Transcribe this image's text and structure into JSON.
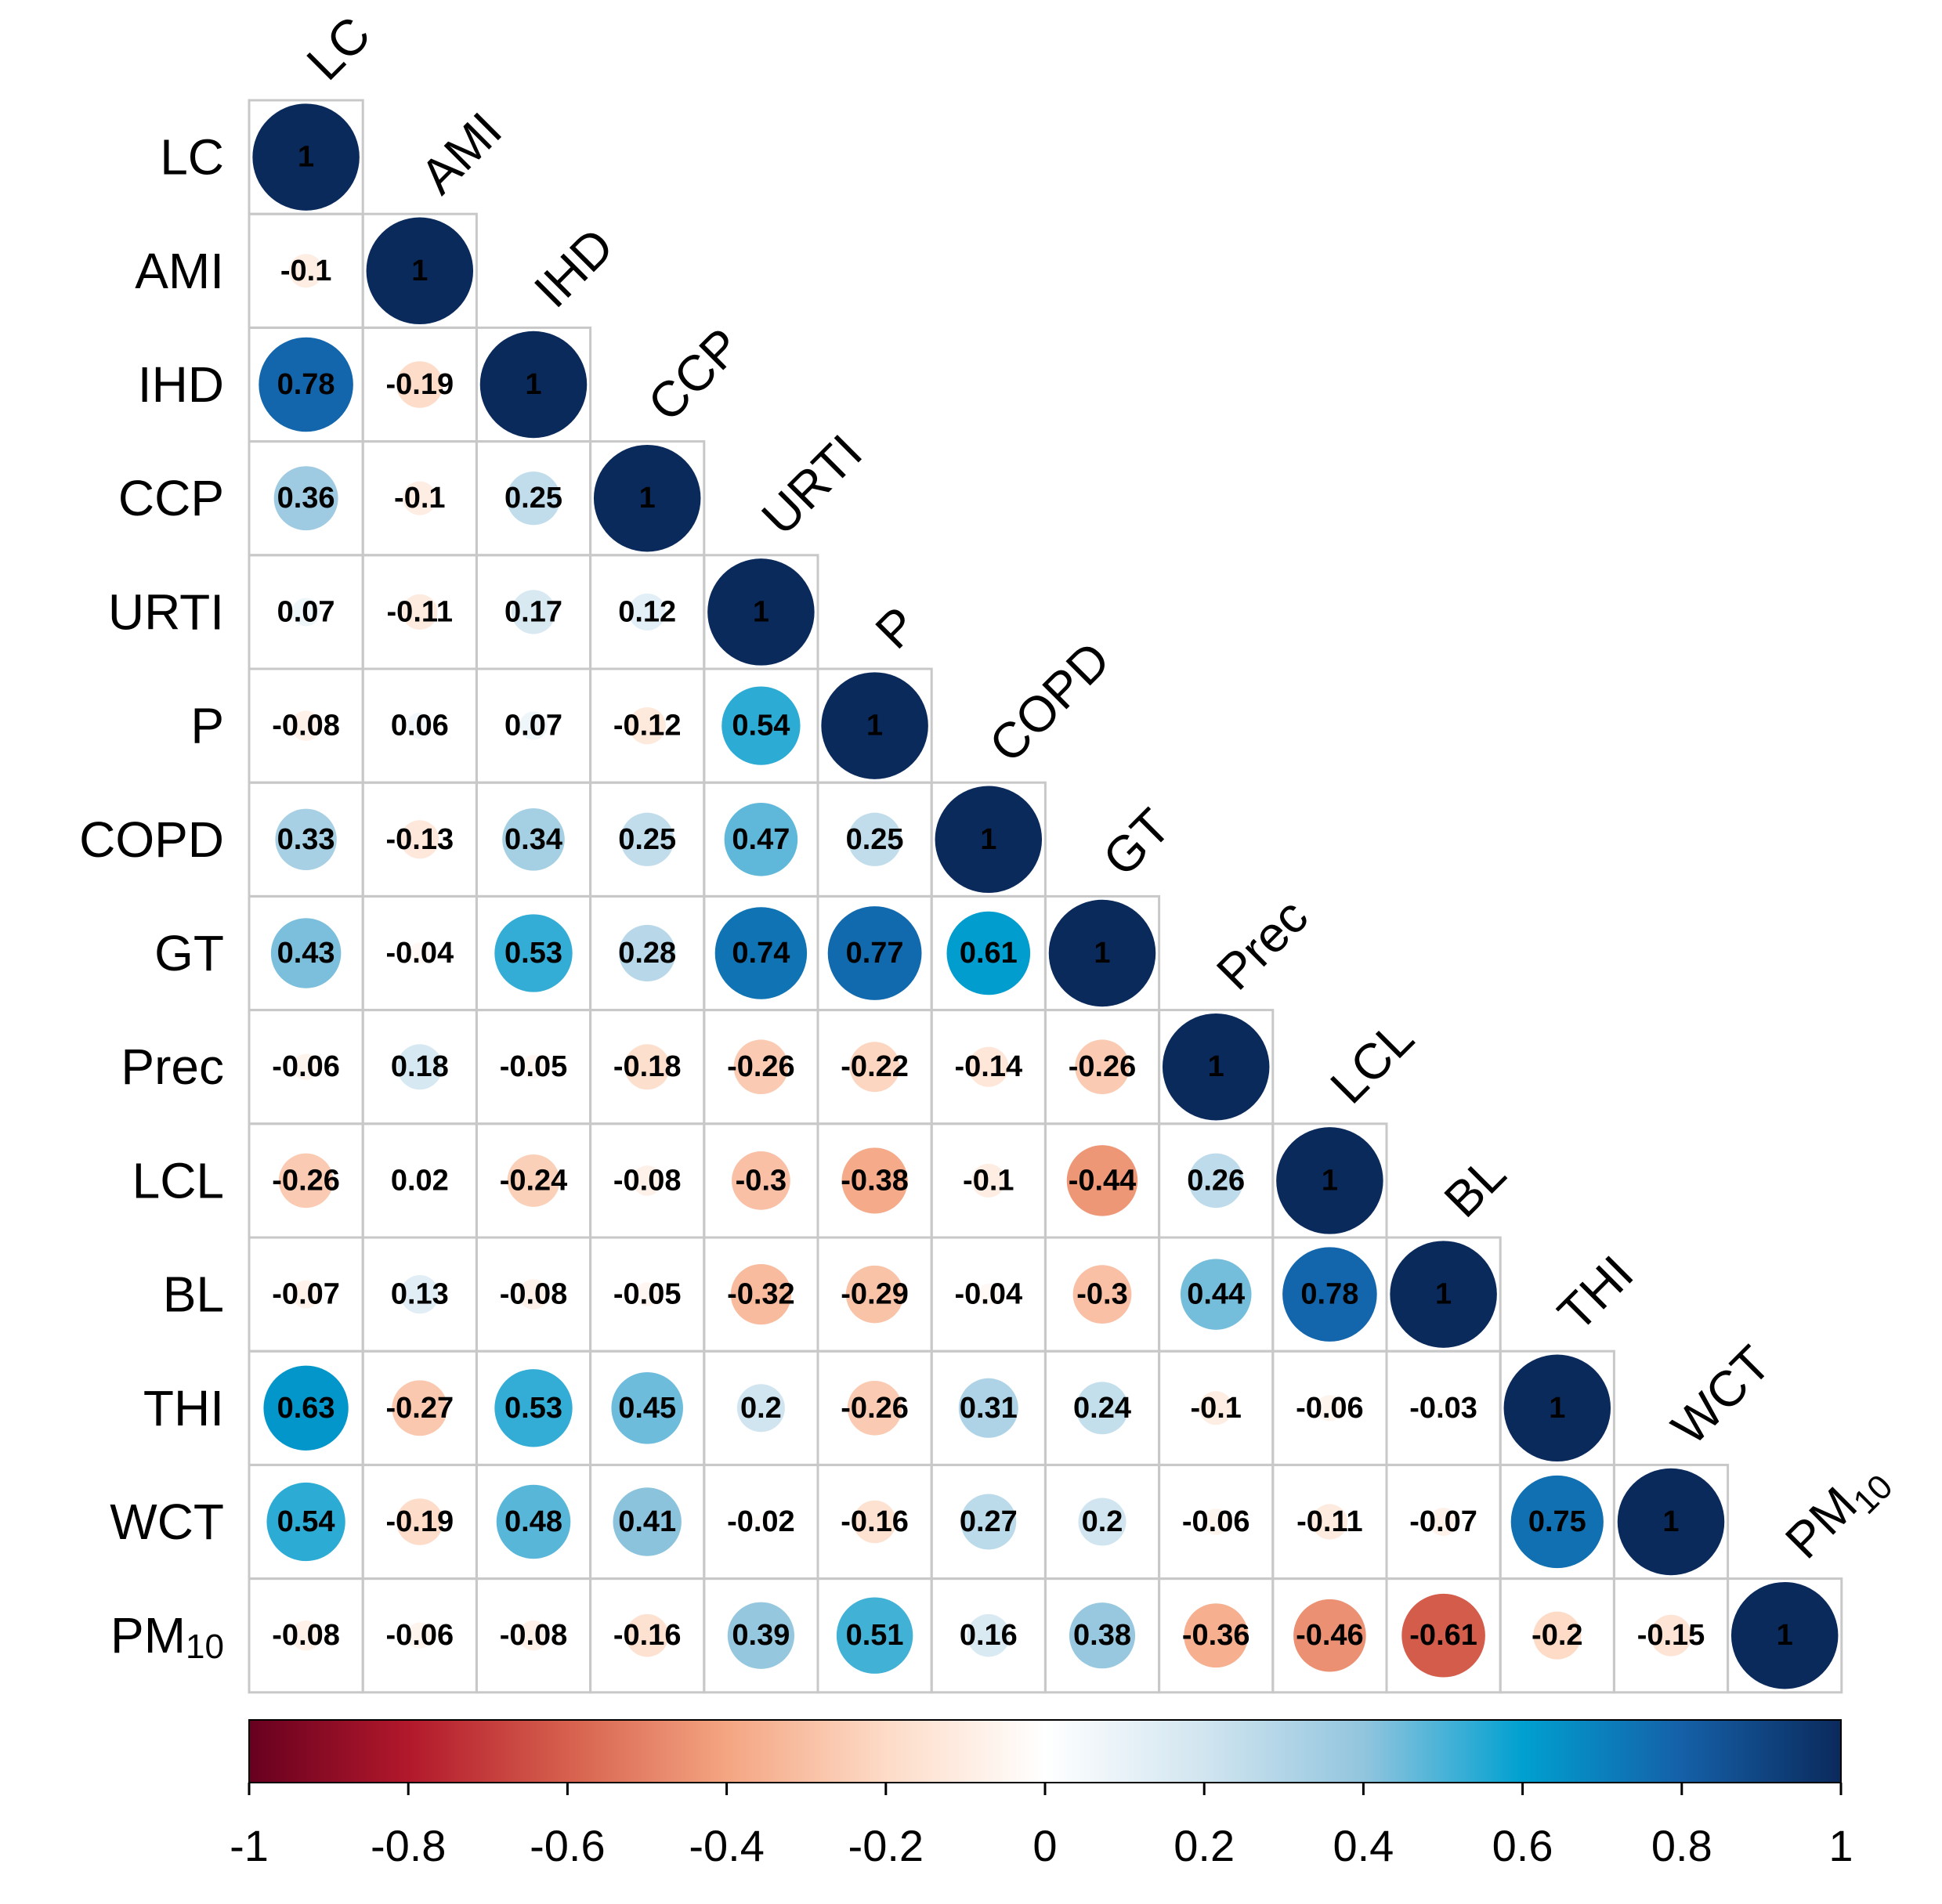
{
  "chart_data": {
    "type": "heatmap",
    "style": "correlation-matrix-circles-lower-triangle",
    "variables": [
      {
        "label": "LC",
        "base": "LC",
        "sub": ""
      },
      {
        "label": "AMI",
        "base": "AMI",
        "sub": ""
      },
      {
        "label": "IHD",
        "base": "IHD",
        "sub": ""
      },
      {
        "label": "CCP",
        "base": "CCP",
        "sub": ""
      },
      {
        "label": "URTI",
        "base": "URTI",
        "sub": ""
      },
      {
        "label": "P",
        "base": "P",
        "sub": ""
      },
      {
        "label": "COPD",
        "base": "COPD",
        "sub": ""
      },
      {
        "label": "GT",
        "base": "GT",
        "sub": ""
      },
      {
        "label": "Prec",
        "base": "Prec",
        "sub": ""
      },
      {
        "label": "LCL",
        "base": "LCL",
        "sub": ""
      },
      {
        "label": "BL",
        "base": "BL",
        "sub": ""
      },
      {
        "label": "THI",
        "base": "THI",
        "sub": ""
      },
      {
        "label": "WCT",
        "base": "WCT",
        "sub": ""
      },
      {
        "label": "PM10",
        "base": "PM",
        "sub": "10"
      }
    ],
    "matrix": [
      [
        1
      ],
      [
        -0.1,
        1
      ],
      [
        0.78,
        -0.19,
        1
      ],
      [
        0.36,
        -0.1,
        0.25,
        1
      ],
      [
        0.07,
        -0.11,
        0.17,
        0.12,
        1
      ],
      [
        -0.08,
        0.06,
        0.07,
        -0.12,
        0.54,
        1
      ],
      [
        0.33,
        -0.13,
        0.34,
        0.25,
        0.47,
        0.25,
        1
      ],
      [
        0.43,
        -0.04,
        0.53,
        0.28,
        0.74,
        0.77,
        0.61,
        1
      ],
      [
        -0.06,
        0.18,
        -0.05,
        -0.18,
        -0.26,
        -0.22,
        -0.14,
        -0.26,
        1
      ],
      [
        -0.26,
        0.02,
        -0.24,
        -0.08,
        -0.3,
        -0.38,
        -0.1,
        -0.44,
        0.26,
        1
      ],
      [
        -0.07,
        0.13,
        -0.08,
        -0.05,
        -0.32,
        -0.29,
        -0.04,
        -0.3,
        0.44,
        0.78,
        1
      ],
      [
        0.63,
        -0.27,
        0.53,
        0.45,
        0.2,
        -0.26,
        0.31,
        0.24,
        -0.1,
        -0.06,
        -0.03,
        1
      ],
      [
        0.54,
        -0.19,
        0.48,
        0.41,
        -0.02,
        -0.16,
        0.27,
        0.2,
        -0.06,
        -0.11,
        -0.07,
        0.75,
        1
      ],
      [
        -0.08,
        -0.06,
        -0.08,
        -0.16,
        0.39,
        0.51,
        0.16,
        0.38,
        -0.36,
        -0.46,
        -0.61,
        -0.2,
        -0.15,
        1
      ]
    ],
    "colorbar": {
      "range": [
        -1,
        1
      ],
      "ticks": [
        -1,
        -0.8,
        -0.6,
        -0.4,
        -0.2,
        0,
        0.2,
        0.4,
        0.6,
        0.8,
        1
      ],
      "tick_labels": [
        "-1",
        "-0.8",
        "-0.6",
        "-0.4",
        "-0.2",
        "0",
        "0.2",
        "0.4",
        "0.6",
        "0.8",
        "1"
      ],
      "placement": "bottom"
    },
    "palette": [
      {
        "v": -1.0,
        "c": "#67001f"
      },
      {
        "v": -0.8,
        "c": "#b2182b"
      },
      {
        "v": -0.6,
        "c": "#d6604d"
      },
      {
        "v": -0.4,
        "c": "#f4a582"
      },
      {
        "v": -0.2,
        "c": "#fddbc7"
      },
      {
        "v": 0.0,
        "c": "#ffffff"
      },
      {
        "v": 0.2,
        "c": "#d1e5f0"
      },
      {
        "v": 0.4,
        "c": "#92c5de"
      },
      {
        "v": 0.6,
        "c": "#00a0d0"
      },
      {
        "v": 0.8,
        "c": "#1560a8"
      },
      {
        "v": 1.0,
        "c": "#0b2a5c"
      }
    ],
    "grid_color": "#c8c8c8",
    "value_labels": true
  }
}
